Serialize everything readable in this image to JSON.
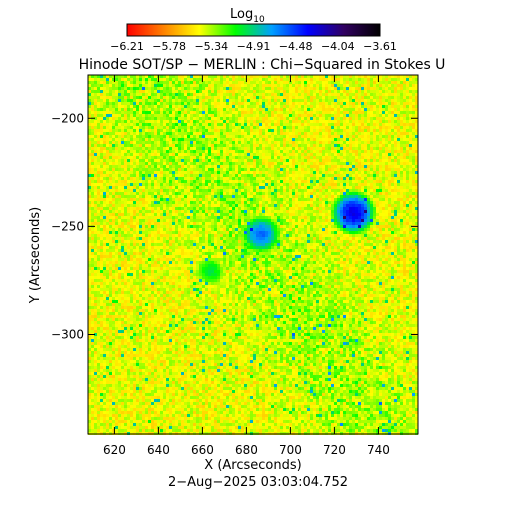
{
  "chart_data": {
    "type": "heatmap",
    "title": "Hinode SOT/SP − MERLIN : Chi−Squared in Stokes U",
    "colorbar": {
      "label_main": "Log",
      "label_sub": "10",
      "ticks": [
        "−6.21",
        "−5.78",
        "−5.34",
        "−4.91",
        "−4.48",
        "−4.04",
        "−3.61"
      ],
      "range": [
        -6.21,
        -3.61
      ],
      "colors": [
        "#ff0000",
        "#ff8000",
        "#ffff00",
        "#00ff00",
        "#00a0ff",
        "#0000ff",
        "#300060",
        "#000000"
      ]
    },
    "x_axis": {
      "label": "X (Arcseconds)",
      "range": [
        608,
        758
      ],
      "ticks": [
        620,
        640,
        660,
        680,
        700,
        720,
        740
      ]
    },
    "y_axis": {
      "label": "Y (Arcseconds)",
      "range": [
        -346,
        -180
      ],
      "ticks": [
        -200,
        -250,
        -300
      ],
      "tick_labels": [
        "−200",
        "−250",
        "−300"
      ]
    },
    "dominant_value_range": [
      -5.6,
      -5.3
    ],
    "features": [
      {
        "x": 728,
        "y": -243,
        "value": -4.3
      },
      {
        "x": 686,
        "y": -253,
        "value": -4.6
      },
      {
        "x": 663,
        "y": -270,
        "value": -5.0
      }
    ],
    "grid": false,
    "footer": "2−Aug−2025 03:03:04.752"
  }
}
